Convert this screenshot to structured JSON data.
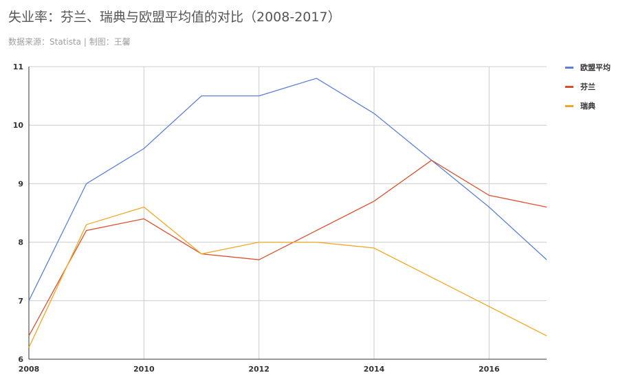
{
  "title": "失业率：芬兰、瑞典与欧盟平均值的对比（2008-2017）",
  "subtitle": "数据来源：Statista | 制图：王馨",
  "colors": {
    "grid": "#cccccc",
    "axis": "#333333"
  },
  "chart_data": {
    "type": "line",
    "x": [
      2008,
      2009,
      2010,
      2011,
      2012,
      2013,
      2014,
      2015,
      2016,
      2017
    ],
    "xlim": [
      2008,
      2017
    ],
    "ylim": [
      6,
      11
    ],
    "xticks": [
      2008,
      2010,
      2012,
      2014,
      2016
    ],
    "yticks": [
      6,
      7,
      8,
      9,
      10,
      11
    ],
    "grid": true,
    "legend_position": "right",
    "series": [
      {
        "name": "欧盟平均",
        "color": "#5b7fd6",
        "values": [
          7.0,
          9.0,
          9.6,
          10.5,
          10.5,
          10.8,
          10.2,
          9.4,
          8.6,
          7.7
        ]
      },
      {
        "name": "芬兰",
        "color": "#dc4f2c",
        "values": [
          6.4,
          8.2,
          8.4,
          7.8,
          7.7,
          8.2,
          8.7,
          9.4,
          8.8,
          8.6
        ]
      },
      {
        "name": "瑞典",
        "color": "#f2a623",
        "values": [
          6.2,
          8.3,
          8.6,
          7.8,
          8.0,
          8.0,
          7.9,
          7.4,
          6.9,
          6.4
        ]
      }
    ]
  }
}
